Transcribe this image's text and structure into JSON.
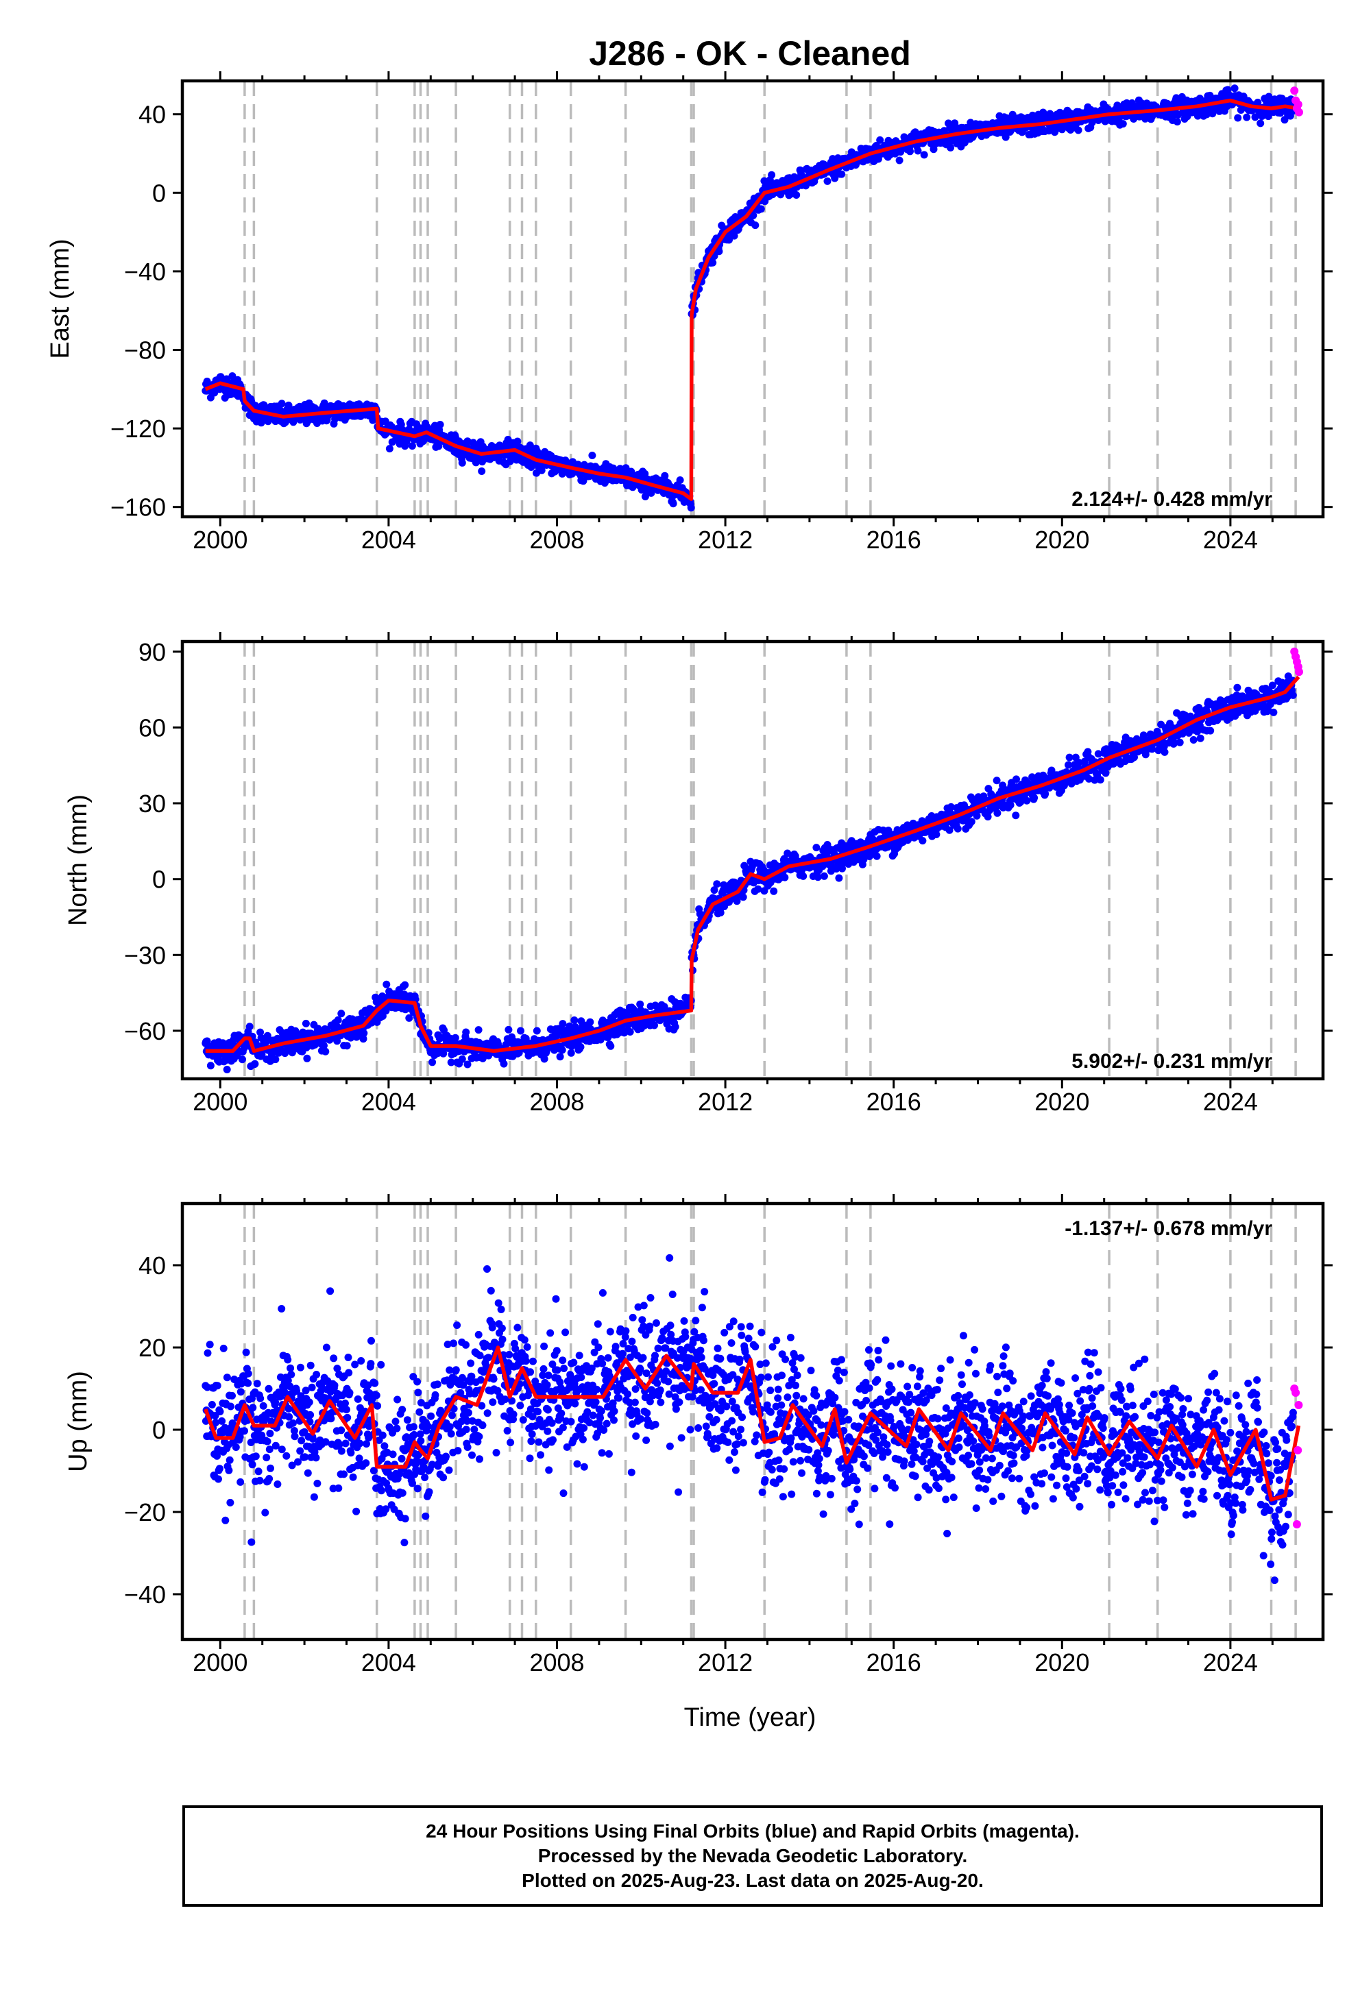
{
  "title": "J286  - OK - Cleaned",
  "colors": {
    "final_orbits": "#0000ff",
    "rapid_orbits": "#ff00ff",
    "model": "#ff0000",
    "event_lines": "#bbbbbb",
    "frame": "#000000"
  },
  "xlabel": "Time (year)",
  "event_years": [
    2000.58,
    2000.8,
    2003.72,
    2004.62,
    2004.76,
    2004.93,
    2005.6,
    2006.88,
    2007.17,
    2007.5,
    2008.33,
    2009.63,
    2011.19,
    2011.25,
    2012.93,
    2014.88,
    2015.45,
    2021.12,
    2022.27,
    2024.0,
    2024.97,
    2025.55
  ],
  "chart_data": [
    {
      "type": "scatter",
      "ylabel": "East (mm)",
      "xlim": [
        1999.1,
        2026.2
      ],
      "ylim": [
        -165,
        57
      ],
      "xticks": [
        2000,
        2004,
        2008,
        2012,
        2016,
        2020,
        2024
      ],
      "yticks": [
        -160,
        -120,
        -80,
        -40,
        0,
        40
      ],
      "rate_label": "2.124+/- 0.428 mm/yr",
      "rate_position": "bottom-right",
      "grid": false,
      "model_series": {
        "name": "model",
        "x": [
          1999.65,
          2000.0,
          2000.55,
          2000.58,
          2000.8,
          2001.5,
          2002.5,
          2003.72,
          2003.75,
          2004.62,
          2004.9,
          2005.6,
          2006.2,
          2007.0,
          2007.5,
          2008.33,
          2009.0,
          2009.63,
          2010.3,
          2011.0,
          2011.19,
          2011.2,
          2011.3,
          2011.6,
          2012.0,
          2012.5,
          2012.93,
          2013.5,
          2014.5,
          2015.45,
          2016.5,
          2017.5,
          2018.5,
          2019.5,
          2020.5,
          2021.12,
          2022.27,
          2023.2,
          2024.0,
          2024.5,
          2024.97,
          2025.3,
          2025.62
        ],
        "y": [
          -100,
          -97,
          -100,
          -106,
          -111,
          -114,
          -112,
          -110,
          -120,
          -124,
          -122,
          -129,
          -133,
          -131,
          -136,
          -140,
          -143,
          -145,
          -149,
          -153,
          -156,
          -62,
          -49,
          -33,
          -20,
          -12,
          0,
          3,
          12,
          20,
          26,
          30,
          33,
          35,
          38,
          40,
          42,
          44,
          47,
          44,
          43,
          44,
          43
        ]
      },
      "rapid_series": {
        "name": "rapid",
        "x": [
          2025.52,
          2025.55,
          2025.58,
          2025.61,
          2025.63
        ],
        "y": [
          52,
          47,
          43,
          45,
          41
        ]
      }
    },
    {
      "type": "scatter",
      "ylabel": "North (mm)",
      "xlim": [
        1999.1,
        2026.2
      ],
      "ylim": [
        -79,
        94
      ],
      "xticks": [
        2000,
        2004,
        2008,
        2012,
        2016,
        2020,
        2024
      ],
      "yticks": [
        -60,
        -30,
        0,
        30,
        60,
        90
      ],
      "rate_label": "5.902+/- 0.231 mm/yr",
      "rate_position": "bottom-right",
      "grid": false,
      "model_series": {
        "name": "model",
        "x": [
          1999.65,
          2000.3,
          2000.58,
          2000.7,
          2000.8,
          2001.5,
          2002.5,
          2003.4,
          2003.72,
          2004.0,
          2004.62,
          2004.76,
          2005.0,
          2005.6,
          2006.5,
          2007.5,
          2008.33,
          2009.0,
          2009.63,
          2010.3,
          2011.19,
          2011.2,
          2011.35,
          2011.7,
          2012.3,
          2012.6,
          2012.93,
          2013.5,
          2014.5,
          2015.45,
          2016.5,
          2017.5,
          2018.5,
          2019.5,
          2020.5,
          2021.12,
          2022.27,
          2023.2,
          2024.0,
          2024.97,
          2025.3,
          2025.62
        ],
        "y": [
          -68,
          -68,
          -63,
          -63,
          -68,
          -65,
          -62,
          -58,
          -52,
          -48,
          -49,
          -58,
          -66,
          -66,
          -68,
          -66,
          -63,
          -60,
          -56,
          -54,
          -52,
          -32,
          -20,
          -10,
          -5,
          2,
          0,
          5,
          8,
          13,
          19,
          25,
          32,
          37,
          43,
          48,
          55,
          63,
          68,
          72,
          74,
          80
        ]
      },
      "rapid_series": {
        "name": "rapid",
        "x": [
          2025.52,
          2025.55,
          2025.58,
          2025.61,
          2025.63
        ],
        "y": [
          90,
          88,
          86,
          84,
          82
        ]
      }
    },
    {
      "type": "scatter",
      "ylabel": "Up (mm)",
      "xlim": [
        1999.1,
        2026.2
      ],
      "ylim": [
        -51,
        55
      ],
      "xticks": [
        2000,
        2004,
        2008,
        2012,
        2016,
        2020,
        2024
      ],
      "yticks": [
        -40,
        -20,
        0,
        20,
        40
      ],
      "rate_label": "-1.137+/- 0.678 mm/yr",
      "rate_position": "top-right",
      "grid": false,
      "model_series": {
        "name": "model",
        "x": [
          1999.65,
          1999.9,
          2000.3,
          2000.58,
          2000.8,
          2001.3,
          2001.6,
          2002.2,
          2002.6,
          2003.2,
          2003.6,
          2003.72,
          2004.4,
          2004.62,
          2004.76,
          2004.93,
          2005.2,
          2005.6,
          2006.1,
          2006.6,
          2006.88,
          2007.17,
          2007.5,
          2008.33,
          2009.1,
          2009.63,
          2010.1,
          2010.6,
          2011.19,
          2011.25,
          2011.7,
          2012.3,
          2012.6,
          2012.93,
          2013.3,
          2013.6,
          2014.3,
          2014.6,
          2014.88,
          2015.45,
          2016.3,
          2016.6,
          2017.3,
          2017.6,
          2018.3,
          2018.6,
          2019.3,
          2019.6,
          2020.3,
          2020.6,
          2021.12,
          2021.6,
          2022.27,
          2022.6,
          2023.2,
          2023.6,
          2024.0,
          2024.6,
          2024.97,
          2025.3,
          2025.62
        ],
        "y": [
          5,
          -2,
          -2,
          6,
          1,
          1,
          8,
          -1,
          7,
          -2,
          6,
          -9,
          -9,
          -3,
          -5,
          -7,
          1,
          8,
          6,
          20,
          8,
          15,
          8,
          8,
          8,
          17,
          10,
          18,
          10,
          16,
          9,
          9,
          17,
          -3,
          -2,
          6,
          -4,
          5,
          -8,
          4,
          -4,
          5,
          -5,
          4,
          -5,
          4,
          -5,
          4,
          -6,
          3,
          -6,
          2,
          -7,
          1,
          -9,
          0,
          -11,
          0,
          -17,
          -16,
          1
        ]
      },
      "rapid_series": {
        "name": "rapid",
        "x": [
          2025.52,
          2025.55,
          2025.58,
          2025.6,
          2025.62
        ],
        "y": [
          10,
          9,
          -23,
          -5,
          6
        ]
      }
    }
  ],
  "footer": {
    "line1": "24 Hour Positions Using Final Orbits (blue) and Rapid Orbits (magenta).",
    "line2": "Processed by the Nevada Geodetic Laboratory.",
    "line3": "Plotted on 2025-Aug-23. Last data on 2025-Aug-20."
  }
}
